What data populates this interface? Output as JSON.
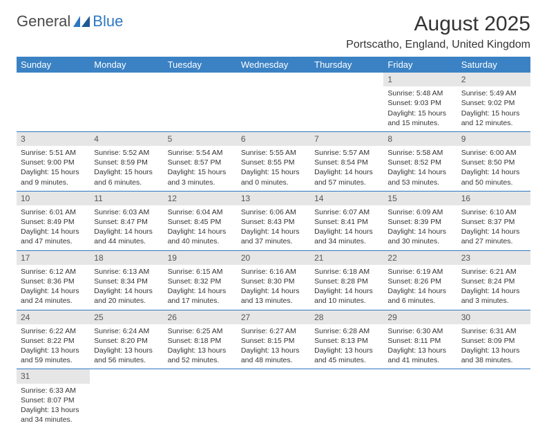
{
  "colors": {
    "header_bg": "#3b82c4",
    "header_text": "#ffffff",
    "daynum_bg": "#e6e6e6",
    "daynum_text": "#555555",
    "body_text": "#333333",
    "row_border": "#2d78c3",
    "logo_blue": "#2d78c3",
    "page_bg": "#ffffff"
  },
  "logo": {
    "part1": "General",
    "part2": "Blue"
  },
  "title": "August 2025",
  "location": "Portscatho, England, United Kingdom",
  "weekday_headers": [
    "Sunday",
    "Monday",
    "Tuesday",
    "Wednesday",
    "Thursday",
    "Friday",
    "Saturday"
  ],
  "weeks": [
    [
      {
        "empty": true
      },
      {
        "empty": true
      },
      {
        "empty": true
      },
      {
        "empty": true
      },
      {
        "empty": true
      },
      {
        "num": "1",
        "sunrise": "Sunrise: 5:48 AM",
        "sunset": "Sunset: 9:03 PM",
        "daylight": "Daylight: 15 hours and 15 minutes."
      },
      {
        "num": "2",
        "sunrise": "Sunrise: 5:49 AM",
        "sunset": "Sunset: 9:02 PM",
        "daylight": "Daylight: 15 hours and 12 minutes."
      }
    ],
    [
      {
        "num": "3",
        "sunrise": "Sunrise: 5:51 AM",
        "sunset": "Sunset: 9:00 PM",
        "daylight": "Daylight: 15 hours and 9 minutes."
      },
      {
        "num": "4",
        "sunrise": "Sunrise: 5:52 AM",
        "sunset": "Sunset: 8:59 PM",
        "daylight": "Daylight: 15 hours and 6 minutes."
      },
      {
        "num": "5",
        "sunrise": "Sunrise: 5:54 AM",
        "sunset": "Sunset: 8:57 PM",
        "daylight": "Daylight: 15 hours and 3 minutes."
      },
      {
        "num": "6",
        "sunrise": "Sunrise: 5:55 AM",
        "sunset": "Sunset: 8:55 PM",
        "daylight": "Daylight: 15 hours and 0 minutes."
      },
      {
        "num": "7",
        "sunrise": "Sunrise: 5:57 AM",
        "sunset": "Sunset: 8:54 PM",
        "daylight": "Daylight: 14 hours and 57 minutes."
      },
      {
        "num": "8",
        "sunrise": "Sunrise: 5:58 AM",
        "sunset": "Sunset: 8:52 PM",
        "daylight": "Daylight: 14 hours and 53 minutes."
      },
      {
        "num": "9",
        "sunrise": "Sunrise: 6:00 AM",
        "sunset": "Sunset: 8:50 PM",
        "daylight": "Daylight: 14 hours and 50 minutes."
      }
    ],
    [
      {
        "num": "10",
        "sunrise": "Sunrise: 6:01 AM",
        "sunset": "Sunset: 8:49 PM",
        "daylight": "Daylight: 14 hours and 47 minutes."
      },
      {
        "num": "11",
        "sunrise": "Sunrise: 6:03 AM",
        "sunset": "Sunset: 8:47 PM",
        "daylight": "Daylight: 14 hours and 44 minutes."
      },
      {
        "num": "12",
        "sunrise": "Sunrise: 6:04 AM",
        "sunset": "Sunset: 8:45 PM",
        "daylight": "Daylight: 14 hours and 40 minutes."
      },
      {
        "num": "13",
        "sunrise": "Sunrise: 6:06 AM",
        "sunset": "Sunset: 8:43 PM",
        "daylight": "Daylight: 14 hours and 37 minutes."
      },
      {
        "num": "14",
        "sunrise": "Sunrise: 6:07 AM",
        "sunset": "Sunset: 8:41 PM",
        "daylight": "Daylight: 14 hours and 34 minutes."
      },
      {
        "num": "15",
        "sunrise": "Sunrise: 6:09 AM",
        "sunset": "Sunset: 8:39 PM",
        "daylight": "Daylight: 14 hours and 30 minutes."
      },
      {
        "num": "16",
        "sunrise": "Sunrise: 6:10 AM",
        "sunset": "Sunset: 8:37 PM",
        "daylight": "Daylight: 14 hours and 27 minutes."
      }
    ],
    [
      {
        "num": "17",
        "sunrise": "Sunrise: 6:12 AM",
        "sunset": "Sunset: 8:36 PM",
        "daylight": "Daylight: 14 hours and 24 minutes."
      },
      {
        "num": "18",
        "sunrise": "Sunrise: 6:13 AM",
        "sunset": "Sunset: 8:34 PM",
        "daylight": "Daylight: 14 hours and 20 minutes."
      },
      {
        "num": "19",
        "sunrise": "Sunrise: 6:15 AM",
        "sunset": "Sunset: 8:32 PM",
        "daylight": "Daylight: 14 hours and 17 minutes."
      },
      {
        "num": "20",
        "sunrise": "Sunrise: 6:16 AM",
        "sunset": "Sunset: 8:30 PM",
        "daylight": "Daylight: 14 hours and 13 minutes."
      },
      {
        "num": "21",
        "sunrise": "Sunrise: 6:18 AM",
        "sunset": "Sunset: 8:28 PM",
        "daylight": "Daylight: 14 hours and 10 minutes."
      },
      {
        "num": "22",
        "sunrise": "Sunrise: 6:19 AM",
        "sunset": "Sunset: 8:26 PM",
        "daylight": "Daylight: 14 hours and 6 minutes."
      },
      {
        "num": "23",
        "sunrise": "Sunrise: 6:21 AM",
        "sunset": "Sunset: 8:24 PM",
        "daylight": "Daylight: 14 hours and 3 minutes."
      }
    ],
    [
      {
        "num": "24",
        "sunrise": "Sunrise: 6:22 AM",
        "sunset": "Sunset: 8:22 PM",
        "daylight": "Daylight: 13 hours and 59 minutes."
      },
      {
        "num": "25",
        "sunrise": "Sunrise: 6:24 AM",
        "sunset": "Sunset: 8:20 PM",
        "daylight": "Daylight: 13 hours and 56 minutes."
      },
      {
        "num": "26",
        "sunrise": "Sunrise: 6:25 AM",
        "sunset": "Sunset: 8:18 PM",
        "daylight": "Daylight: 13 hours and 52 minutes."
      },
      {
        "num": "27",
        "sunrise": "Sunrise: 6:27 AM",
        "sunset": "Sunset: 8:15 PM",
        "daylight": "Daylight: 13 hours and 48 minutes."
      },
      {
        "num": "28",
        "sunrise": "Sunrise: 6:28 AM",
        "sunset": "Sunset: 8:13 PM",
        "daylight": "Daylight: 13 hours and 45 minutes."
      },
      {
        "num": "29",
        "sunrise": "Sunrise: 6:30 AM",
        "sunset": "Sunset: 8:11 PM",
        "daylight": "Daylight: 13 hours and 41 minutes."
      },
      {
        "num": "30",
        "sunrise": "Sunrise: 6:31 AM",
        "sunset": "Sunset: 8:09 PM",
        "daylight": "Daylight: 13 hours and 38 minutes."
      }
    ],
    [
      {
        "num": "31",
        "sunrise": "Sunrise: 6:33 AM",
        "sunset": "Sunset: 8:07 PM",
        "daylight": "Daylight: 13 hours and 34 minutes."
      },
      {
        "empty": true
      },
      {
        "empty": true
      },
      {
        "empty": true
      },
      {
        "empty": true
      },
      {
        "empty": true
      },
      {
        "empty": true
      }
    ]
  ]
}
